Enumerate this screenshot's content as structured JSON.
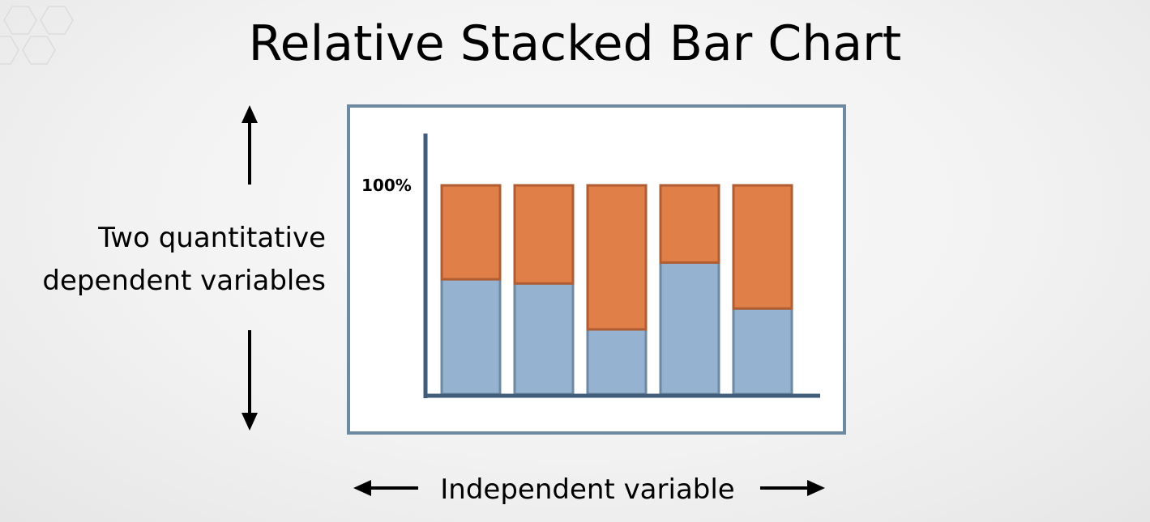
{
  "title": "Relative Stacked Bar Chart",
  "dependent_label_lines": [
    "Two quantitative",
    "dependent variables"
  ],
  "independent_label": "Independent variable",
  "chart_data": {
    "type": "bar",
    "stacked": true,
    "normalized": true,
    "categories": [
      "",
      "",
      "",
      "",
      ""
    ],
    "series": [
      {
        "values": [
          55,
          53,
          31,
          63,
          41
        ]
      },
      {
        "values": [
          45,
          47,
          69,
          37,
          59
        ]
      }
    ],
    "ylim": [
      0,
      100
    ],
    "y_tick_label": "100%",
    "colors": {
      "bottom": "#95b3d1",
      "top": "#e07f47",
      "bottom_edge": "#6e8aa2",
      "top_edge": "#b05d33",
      "axis": "#3f5d7a"
    }
  }
}
